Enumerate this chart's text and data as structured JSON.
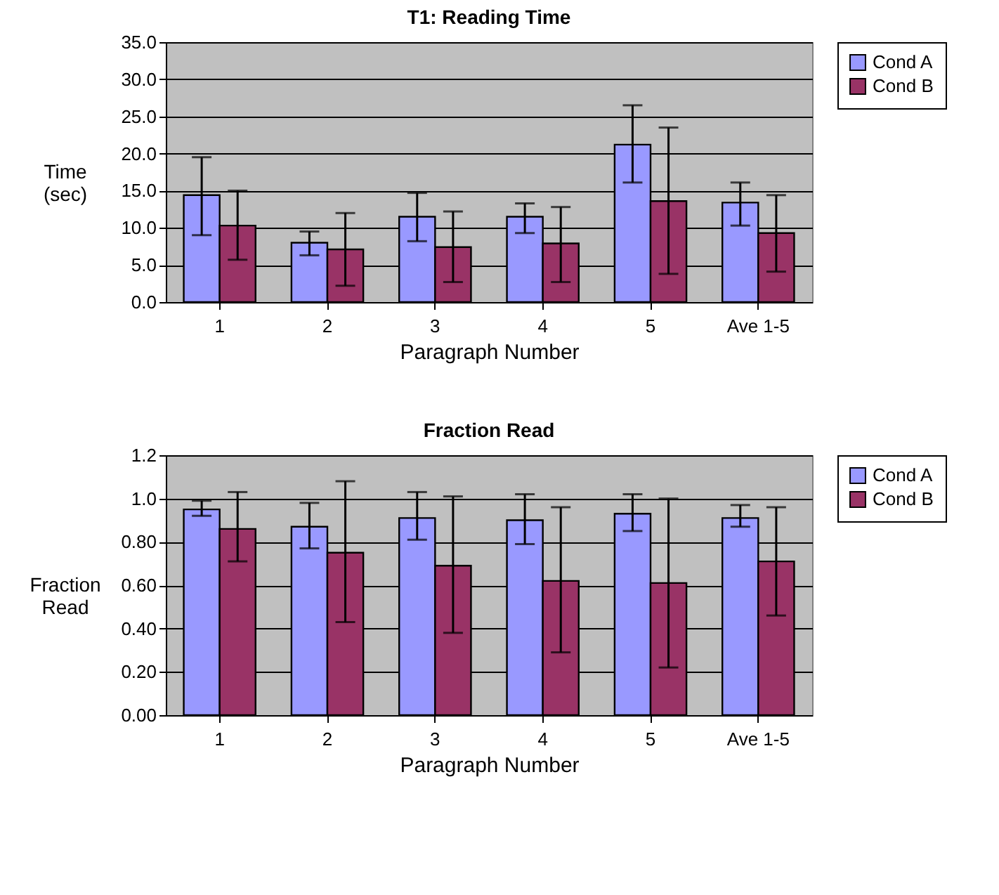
{
  "chart_data": [
    {
      "type": "bar",
      "title": "T1: Reading Time",
      "xlabel": "Paragraph Number",
      "ylabel": "Time (sec)",
      "categories": [
        "1",
        "2",
        "3",
        "4",
        "5",
        "Ave 1-5"
      ],
      "series": [
        {
          "name": "Cond A",
          "color": "#9999ff",
          "values": [
            14.4,
            8.0,
            11.5,
            11.5,
            21.2,
            13.4
          ],
          "errors": [
            [
              9.0,
              19.5
            ],
            [
              6.3,
              9.5
            ],
            [
              8.2,
              14.7
            ],
            [
              9.3,
              13.3
            ],
            [
              16.1,
              26.5
            ],
            [
              10.3,
              16.1
            ]
          ]
        },
        {
          "name": "Cond B",
          "color": "#993366",
          "values": [
            10.3,
            7.1,
            7.4,
            7.9,
            13.6,
            9.3
          ],
          "errors": [
            [
              5.7,
              15.0
            ],
            [
              2.2,
              12.0
            ],
            [
              2.7,
              12.2
            ],
            [
              2.7,
              12.8
            ],
            [
              3.8,
              23.5
            ],
            [
              4.1,
              14.4
            ]
          ]
        }
      ],
      "ylim": [
        0,
        35
      ],
      "yticks": [
        {
          "value": 0,
          "label": "0.0"
        },
        {
          "value": 5,
          "label": "5.0"
        },
        {
          "value": 10,
          "label": "10.0"
        },
        {
          "value": 15,
          "label": "15.0"
        },
        {
          "value": 20,
          "label": "20.0"
        },
        {
          "value": 25,
          "label": "25.0"
        },
        {
          "value": 30,
          "label": "30.0"
        },
        {
          "value": 35,
          "label": "35.0"
        }
      ],
      "grid": "y",
      "legend": "right"
    },
    {
      "type": "bar",
      "title": "Fraction Read",
      "xlabel": "Paragraph Number",
      "ylabel": "Fraction Read",
      "categories": [
        "1",
        "2",
        "3",
        "4",
        "5",
        "Ave 1-5"
      ],
      "series": [
        {
          "name": "Cond A",
          "color": "#9999ff",
          "values": [
            0.95,
            0.87,
            0.91,
            0.9,
            0.93,
            0.91
          ],
          "errors": [
            [
              0.92,
              0.99
            ],
            [
              0.77,
              0.98
            ],
            [
              0.81,
              1.03
            ],
            [
              0.79,
              1.02
            ],
            [
              0.85,
              1.02
            ],
            [
              0.87,
              0.97
            ]
          ]
        },
        {
          "name": "Cond B",
          "color": "#993366",
          "values": [
            0.86,
            0.75,
            0.69,
            0.62,
            0.61,
            0.71
          ],
          "errors": [
            [
              0.71,
              1.03
            ],
            [
              0.43,
              1.08
            ],
            [
              0.38,
              1.01
            ],
            [
              0.29,
              0.96
            ],
            [
              0.22,
              1.0
            ],
            [
              0.46,
              0.96
            ]
          ]
        }
      ],
      "ylim": [
        0,
        1.2
      ],
      "yticks": [
        {
          "value": 0,
          "label": "0.00"
        },
        {
          "value": 0.2,
          "label": "0.20"
        },
        {
          "value": 0.4,
          "label": "0.40"
        },
        {
          "value": 0.6,
          "label": "0.60"
        },
        {
          "value": 0.8,
          "label": "0.80"
        },
        {
          "value": 1.0,
          "label": "1.0"
        },
        {
          "value": 1.2,
          "label": "1.2"
        }
      ],
      "grid": "y",
      "legend": "right"
    }
  ]
}
